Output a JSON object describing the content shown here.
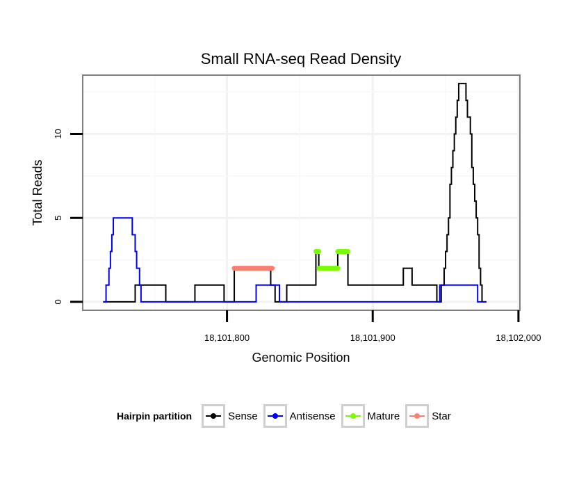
{
  "chart_data": {
    "type": "line",
    "title": "Small RNA-seq Read Density",
    "xlabel": "Genomic Position",
    "ylabel": "Total Reads",
    "xlim": [
      18101701,
      18102001
    ],
    "ylim": [
      -0.5,
      13.5
    ],
    "x_ticks": [
      18101800,
      18101900,
      18102000
    ],
    "x_tick_labels": [
      "18,101,800",
      "18,101,900",
      "18,102,000"
    ],
    "y_ticks": [
      0,
      5,
      10
    ],
    "y_tick_labels": [
      "0",
      "5",
      "10"
    ],
    "grid": true,
    "legend_position": "bottom",
    "legend_title": "Hairpin partition",
    "series": [
      {
        "name": "Sense",
        "color": "#000000",
        "style": "line",
        "points": [
          [
            18101715,
            0
          ],
          [
            18101737,
            0
          ],
          [
            18101737,
            1
          ],
          [
            18101758,
            1
          ],
          [
            18101758,
            0
          ],
          [
            18101778,
            0
          ],
          [
            18101778,
            1
          ],
          [
            18101798,
            1
          ],
          [
            18101798,
            0
          ],
          [
            18101805,
            0
          ],
          [
            18101805,
            2
          ],
          [
            18101830,
            2
          ],
          [
            18101830,
            1
          ],
          [
            18101833,
            1
          ],
          [
            18101833,
            0
          ],
          [
            18101841,
            0
          ],
          [
            18101841,
            1
          ],
          [
            18101861,
            1
          ],
          [
            18101861,
            3
          ],
          [
            18101863,
            3
          ],
          [
            18101863,
            2
          ],
          [
            18101876,
            2
          ],
          [
            18101876,
            3
          ],
          [
            18101883,
            3
          ],
          [
            18101883,
            1
          ],
          [
            18101921,
            1
          ],
          [
            18101921,
            2
          ],
          [
            18101927,
            2
          ],
          [
            18101927,
            1
          ],
          [
            18101944,
            1
          ],
          [
            18101944,
            0
          ],
          [
            18101947,
            0
          ],
          [
            18101947,
            1
          ],
          [
            18101949,
            1
          ],
          [
            18101949,
            2
          ],
          [
            18101950,
            2
          ],
          [
            18101950,
            3
          ],
          [
            18101951,
            3
          ],
          [
            18101951,
            4
          ],
          [
            18101952,
            4
          ],
          [
            18101952,
            5
          ],
          [
            18101953,
            5
          ],
          [
            18101953,
            7
          ],
          [
            18101954,
            7
          ],
          [
            18101954,
            8
          ],
          [
            18101955,
            8
          ],
          [
            18101955,
            9
          ],
          [
            18101956,
            9
          ],
          [
            18101956,
            10
          ],
          [
            18101957,
            10
          ],
          [
            18101957,
            11
          ],
          [
            18101958,
            11
          ],
          [
            18101958,
            12
          ],
          [
            18101959,
            12
          ],
          [
            18101959,
            13
          ],
          [
            18101964,
            13
          ],
          [
            18101964,
            12
          ],
          [
            18101965,
            12
          ],
          [
            18101965,
            11
          ],
          [
            18101967,
            11
          ],
          [
            18101967,
            10
          ],
          [
            18101968,
            10
          ],
          [
            18101968,
            8
          ],
          [
            18101969,
            8
          ],
          [
            18101969,
            7
          ],
          [
            18101970,
            7
          ],
          [
            18101970,
            6
          ],
          [
            18101971,
            6
          ],
          [
            18101971,
            5
          ],
          [
            18101972,
            5
          ],
          [
            18101972,
            4
          ],
          [
            18101973,
            4
          ],
          [
            18101973,
            2
          ],
          [
            18101974,
            2
          ],
          [
            18101974,
            1
          ],
          [
            18101975,
            1
          ],
          [
            18101975,
            0
          ],
          [
            18101978,
            0
          ]
        ]
      },
      {
        "name": "Antisense",
        "color": "#0000ff",
        "style": "line",
        "points": [
          [
            18101715,
            0
          ],
          [
            18101717,
            0
          ],
          [
            18101717,
            1
          ],
          [
            18101719,
            1
          ],
          [
            18101719,
            2
          ],
          [
            18101720,
            2
          ],
          [
            18101720,
            3
          ],
          [
            18101721,
            3
          ],
          [
            18101721,
            4
          ],
          [
            18101722,
            4
          ],
          [
            18101722,
            5
          ],
          [
            18101735,
            5
          ],
          [
            18101735,
            4
          ],
          [
            18101737,
            4
          ],
          [
            18101737,
            3
          ],
          [
            18101738,
            3
          ],
          [
            18101738,
            2
          ],
          [
            18101740,
            2
          ],
          [
            18101740,
            1
          ],
          [
            18101741,
            1
          ],
          [
            18101741,
            0
          ],
          [
            18101820,
            0
          ],
          [
            18101820,
            1
          ],
          [
            18101836,
            1
          ],
          [
            18101836,
            0
          ],
          [
            18101946,
            0
          ],
          [
            18101946,
            1
          ],
          [
            18101972,
            1
          ],
          [
            18101972,
            0
          ],
          [
            18101978,
            0
          ]
        ]
      },
      {
        "name": "Mature",
        "color": "#7cfc00",
        "style": "segment",
        "segments": [
          [
            18101861,
            18101863,
            3
          ],
          [
            18101863,
            18101876,
            2
          ],
          [
            18101876,
            18101883,
            3
          ]
        ]
      },
      {
        "name": "Star",
        "color": "#f88070",
        "style": "segment",
        "segments": [
          [
            18101805,
            18101831,
            2
          ]
        ]
      }
    ]
  }
}
